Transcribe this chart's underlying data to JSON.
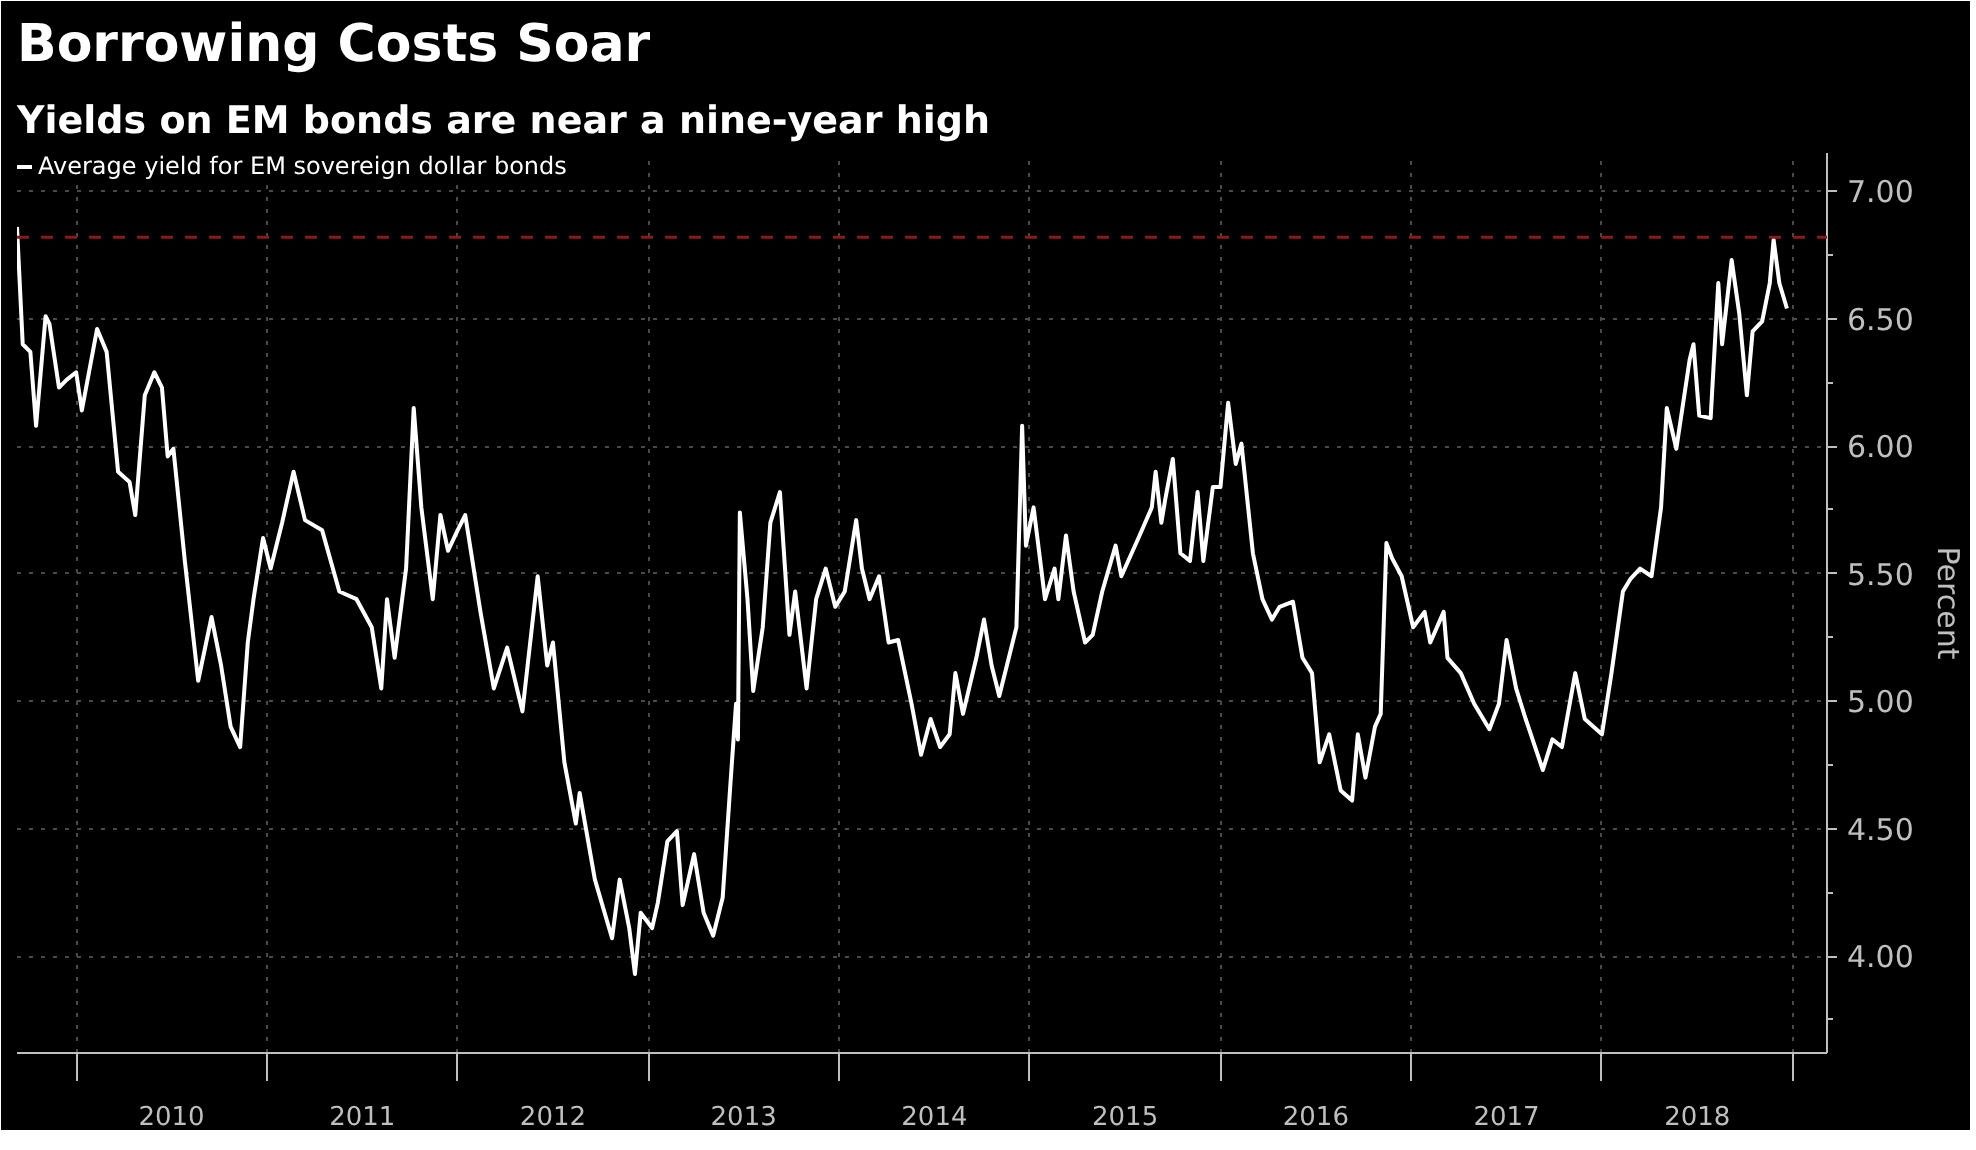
{
  "chart_data": {
    "type": "line",
    "title": "Borrowing Costs Soar",
    "subtitle": "Yields on EM bonds are near a nine-year high",
    "ylabel": "Percent",
    "xlim": [
      2009.69,
      2019.18
    ],
    "ylim": [
      3.62,
      7.15
    ],
    "xticks": [
      {
        "value": 2010,
        "label": null
      },
      {
        "value": 2010.5,
        "label": "2010"
      },
      {
        "value": 2011,
        "label": null
      },
      {
        "value": 2011.5,
        "label": "2011"
      },
      {
        "value": 2012,
        "label": null
      },
      {
        "value": 2012.5,
        "label": "2012"
      },
      {
        "value": 2013,
        "label": null
      },
      {
        "value": 2013.5,
        "label": "2013"
      },
      {
        "value": 2014,
        "label": null
      },
      {
        "value": 2014.5,
        "label": "2014"
      },
      {
        "value": 2015,
        "label": null
      },
      {
        "value": 2015.5,
        "label": "2015"
      },
      {
        "value": 2016,
        "label": null
      },
      {
        "value": 2016.5,
        "label": "2016"
      },
      {
        "value": 2017,
        "label": null
      },
      {
        "value": 2017.5,
        "label": "2017"
      },
      {
        "value": 2018,
        "label": null
      },
      {
        "value": 2018.5,
        "label": "2018"
      },
      {
        "value": 2019,
        "label": null
      }
    ],
    "yticks": [
      {
        "value": 3.75,
        "label": null
      },
      {
        "value": 4,
        "label": "4.00"
      },
      {
        "value": 4.25,
        "label": null
      },
      {
        "value": 4.5,
        "label": "4.50"
      },
      {
        "value": 4.75,
        "label": null
      },
      {
        "value": 5,
        "label": "5.00"
      },
      {
        "value": 5.25,
        "label": null
      },
      {
        "value": 5.5,
        "label": "5.50"
      },
      {
        "value": 5.75,
        "label": null
      },
      {
        "value": 6,
        "label": "6.00"
      },
      {
        "value": 6.25,
        "label": null
      },
      {
        "value": 6.5,
        "label": "6.50"
      },
      {
        "value": 6.75,
        "label": null
      },
      {
        "value": 7,
        "label": "7.00"
      }
    ],
    "grid": true,
    "legend": "top left",
    "ref_lines": [
      {
        "axis": "y",
        "value": 6.82,
        "color": "#8b1a1a",
        "line_style": "dashed"
      }
    ],
    "series": [
      {
        "name": "Average yield for EM sovereign dollar bonds",
        "color": "#ffffff",
        "x": [
          2009.69,
          2009.72,
          2009.76,
          2009.79,
          2009.84,
          2009.86,
          2009.91,
          2009.95,
          2010.0,
          2010.03,
          2010.11,
          2010.16,
          2010.22,
          2010.28,
          2010.31,
          2010.36,
          2010.41,
          2010.45,
          2010.48,
          2010.51,
          2010.57,
          2010.64,
          2010.71,
          2010.76,
          2010.81,
          2010.86,
          2010.9,
          2010.93,
          2010.98,
          2011.02,
          2011.08,
          2011.14,
          2011.2,
          2011.29,
          2011.38,
          2011.47,
          2011.55,
          2011.6,
          2011.63,
          2011.67,
          2011.73,
          2011.77,
          2011.81,
          2011.87,
          2011.91,
          2011.95,
          2012.0,
          2012.04,
          2012.12,
          2012.19,
          2012.26,
          2012.34,
          2012.42,
          2012.47,
          2012.5,
          2012.56,
          2012.62,
          2012.64,
          2012.72,
          2012.81,
          2012.85,
          2012.9,
          2012.93,
          2012.96,
          2013.02,
          2013.05,
          2013.1,
          2013.15,
          2013.18,
          2013.24,
          2013.29,
          2013.34,
          2013.39,
          2013.43,
          2013.46,
          2013.47,
          2013.48,
          2013.52,
          2013.55,
          2013.6,
          2013.64,
          2013.69,
          2013.74,
          2013.77,
          2013.83,
          2013.88,
          2013.93,
          2013.98,
          2014.03,
          2014.09,
          2014.12,
          2014.16,
          2014.21,
          2014.26,
          2014.31,
          2014.38,
          2014.43,
          2014.48,
          2014.53,
          2014.58,
          2014.61,
          2014.65,
          2014.72,
          2014.76,
          2014.8,
          2014.84,
          2014.9,
          2014.93,
          2014.96,
          2014.98,
          2015.02,
          2015.08,
          2015.13,
          2015.15,
          2015.19,
          2015.23,
          2015.29,
          2015.33,
          2015.38,
          2015.45,
          2015.48,
          2015.57,
          2015.64,
          2015.66,
          2015.69,
          2015.71,
          2015.75,
          2015.79,
          2015.84,
          2015.88,
          2015.91,
          2015.96,
          2016.0,
          2016.04,
          2016.08,
          2016.11,
          2016.17,
          2016.22,
          2016.27,
          2016.31,
          2016.38,
          2016.43,
          2016.48,
          2016.52,
          2016.57,
          2016.63,
          2016.69,
          2016.72,
          2016.76,
          2016.81,
          2016.84,
          2016.87,
          2016.9,
          2016.95,
          2017.01,
          2017.07,
          2017.1,
          2017.17,
          2017.19,
          2017.26,
          2017.33,
          2017.41,
          2017.46,
          2017.5,
          2017.55,
          2017.6,
          2017.69,
          2017.74,
          2017.79,
          2017.86,
          2017.91,
          2018.0,
          2018.05,
          2018.11,
          2018.15,
          2018.2,
          2018.26,
          2018.31,
          2018.34,
          2018.39,
          2018.46,
          2018.48,
          2018.51,
          2018.57,
          2018.61,
          2018.63,
          2018.68,
          2018.72,
          2018.76,
          2018.79,
          2018.84,
          2018.88,
          2018.9,
          2018.93,
          2018.97
        ],
        "values": [
          6.86,
          6.4,
          6.37,
          6.08,
          6.51,
          6.48,
          6.23,
          6.26,
          6.29,
          6.14,
          6.46,
          6.37,
          5.9,
          5.86,
          5.73,
          6.2,
          6.29,
          6.23,
          5.96,
          5.99,
          5.55,
          5.08,
          5.33,
          5.14,
          4.9,
          4.82,
          5.23,
          5.4,
          5.64,
          5.52,
          5.7,
          5.9,
          5.71,
          5.67,
          5.43,
          5.4,
          5.29,
          5.05,
          5.4,
          5.17,
          5.52,
          6.15,
          5.76,
          5.4,
          5.73,
          5.59,
          5.67,
          5.73,
          5.35,
          5.05,
          5.21,
          4.96,
          5.49,
          5.14,
          5.23,
          4.76,
          4.52,
          4.64,
          4.3,
          4.07,
          4.3,
          4.11,
          3.93,
          4.17,
          4.11,
          4.21,
          4.45,
          4.49,
          4.2,
          4.4,
          4.17,
          4.08,
          4.23,
          4.67,
          4.99,
          4.85,
          5.74,
          5.4,
          5.04,
          5.29,
          5.7,
          5.82,
          5.26,
          5.43,
          5.05,
          5.4,
          5.52,
          5.37,
          5.43,
          5.71,
          5.52,
          5.4,
          5.49,
          5.23,
          5.24,
          4.99,
          4.79,
          4.93,
          4.82,
          4.87,
          5.11,
          4.95,
          5.17,
          5.32,
          5.14,
          5.02,
          5.2,
          5.29,
          6.08,
          5.61,
          5.76,
          5.4,
          5.52,
          5.4,
          5.65,
          5.43,
          5.23,
          5.26,
          5.43,
          5.61,
          5.49,
          5.64,
          5.76,
          5.9,
          5.7,
          5.79,
          5.95,
          5.58,
          5.55,
          5.82,
          5.55,
          5.84,
          5.84,
          6.17,
          5.93,
          6.01,
          5.58,
          5.4,
          5.32,
          5.37,
          5.39,
          5.17,
          5.11,
          4.76,
          4.87,
          4.65,
          4.61,
          4.87,
          4.7,
          4.9,
          4.95,
          5.62,
          5.56,
          5.49,
          5.29,
          5.35,
          5.23,
          5.35,
          5.17,
          5.11,
          4.99,
          4.89,
          4.99,
          5.24,
          5.05,
          4.93,
          4.73,
          4.85,
          4.82,
          5.11,
          4.93,
          4.87,
          5.11,
          5.43,
          5.48,
          5.52,
          5.49,
          5.76,
          6.15,
          5.99,
          6.34,
          6.4,
          6.12,
          6.11,
          6.64,
          6.4,
          6.73,
          6.52,
          6.2,
          6.45,
          6.49,
          6.64,
          6.81,
          6.64,
          6.54
        ]
      }
    ]
  }
}
